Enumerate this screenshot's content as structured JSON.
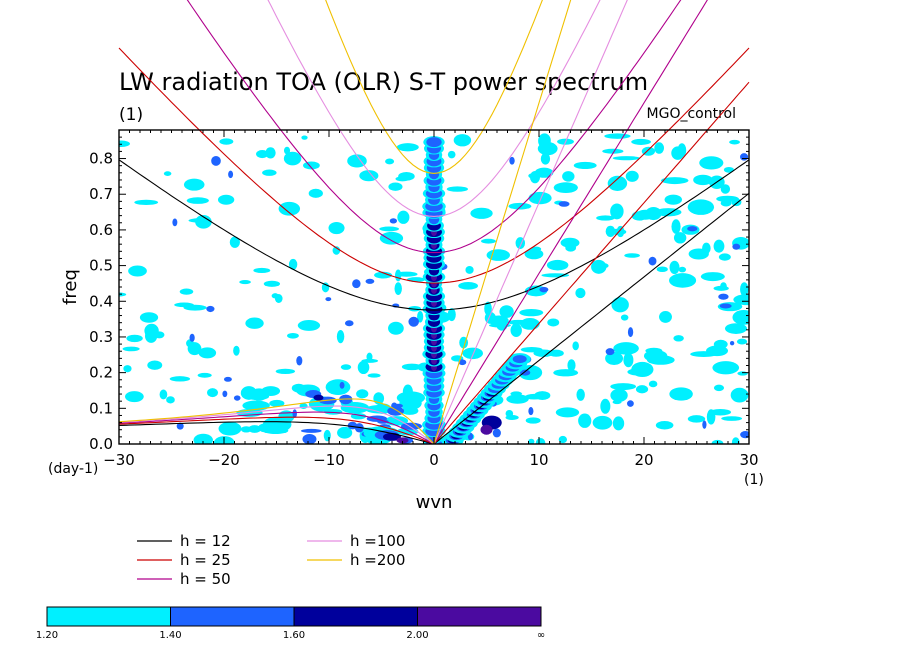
{
  "chart_data": {
    "type": "heatmap",
    "title": "LW radiation TOA (OLR) S-T power spectrum",
    "subtitle": "(1)",
    "label_right": "MGO_control",
    "xlabel": "wvn",
    "ylabel": "freq",
    "x_unit": "(1)",
    "y_unit": "(day-1)",
    "xlim": [
      -30,
      30
    ],
    "ylim": [
      0,
      0.88
    ],
    "xticks": [
      "-30",
      "-20",
      "-10",
      "0",
      "10",
      "20",
      "30"
    ],
    "yticks": [
      "0.0",
      "0.1",
      "0.2",
      "0.3",
      "0.4",
      "0.5",
      "0.6",
      "0.7",
      "0.8"
    ],
    "xtick_values": [
      -30,
      -20,
      -10,
      0,
      10,
      20,
      30
    ],
    "ytick_values": [
      0,
      0.1,
      0.2,
      0.3,
      0.4,
      0.5,
      0.6,
      0.7,
      0.8
    ],
    "dispersion_curves": [
      {
        "label": "h = 12",
        "h": 12,
        "color": "#000000"
      },
      {
        "label": "h = 25",
        "h": 25,
        "color": "#cc0000"
      },
      {
        "label": "h = 50",
        "h": 50,
        "color": "#b0008c"
      },
      {
        "label": "h =100",
        "h": 100,
        "color": "#e58ee0"
      },
      {
        "label": "h =200",
        "h": 200,
        "color": "#f0c000"
      }
    ],
    "colorbar": {
      "levels": [
        "1.20",
        "1.40",
        "1.60",
        "2.00",
        "∞"
      ],
      "colors": [
        "#00f0ff",
        "#1e64ff",
        "#00009c",
        "#4b0aa0"
      ]
    },
    "contour_regions": [
      {
        "level": 2,
        "x": 0,
        "y0": 0.0,
        "y1": 0.86
      },
      {
        "level": 2,
        "x": 5.5,
        "y0": 0.02,
        "y1": 0.14
      },
      {
        "level": 2,
        "x": -5,
        "y0": 0.0,
        "y1": 0.05
      },
      {
        "level": 1,
        "x": -12,
        "y0": 0.08,
        "y1": 0.16
      },
      {
        "level": 0,
        "x": -18,
        "y0": 0.12,
        "y1": 0.3
      }
    ]
  }
}
